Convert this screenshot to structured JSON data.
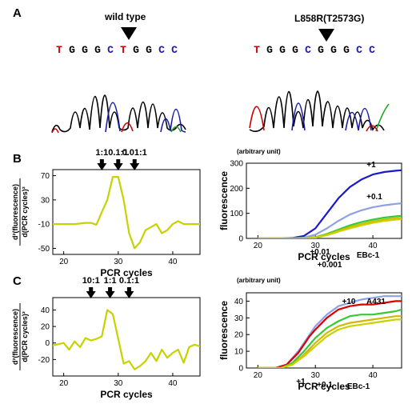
{
  "panels": {
    "a": {
      "letter": "A",
      "left": {
        "label": "wild type",
        "sequence": [
          {
            "base": "T",
            "color": "#cc0000"
          },
          {
            "base": "G",
            "color": "#000000"
          },
          {
            "base": "G",
            "color": "#000000"
          },
          {
            "base": "G",
            "color": "#000000"
          },
          {
            "base": "C",
            "color": "#1a1aa8"
          },
          {
            "base": "T",
            "color": "#cc0000"
          },
          {
            "base": "G",
            "color": "#000000"
          },
          {
            "base": "G",
            "color": "#000000"
          },
          {
            "base": "C",
            "color": "#1a1aa8"
          },
          {
            "base": "C",
            "color": "#1a1aa8"
          }
        ]
      },
      "right": {
        "label": "L858R(T2573G)",
        "sequence": [
          {
            "base": "T",
            "color": "#cc0000"
          },
          {
            "base": "G",
            "color": "#000000"
          },
          {
            "base": "G",
            "color": "#000000"
          },
          {
            "base": "G",
            "color": "#000000"
          },
          {
            "base": "C",
            "color": "#1a1aa8"
          },
          {
            "base": "G",
            "color": "#000000"
          },
          {
            "base": "G",
            "color": "#000000"
          },
          {
            "base": "G",
            "color": "#000000"
          },
          {
            "base": "C",
            "color": "#1a1aa8"
          },
          {
            "base": "C",
            "color": "#1a1aa8"
          }
        ]
      }
    },
    "b": {
      "letter": "B"
    },
    "c": {
      "letter": "C"
    }
  },
  "chart_data": [
    {
      "id": "B-left",
      "type": "line",
      "xlabel": "PCR cycles",
      "ylabel_numerator": "d²(fluorescence)",
      "ylabel_denominator": "d(PCR cycles)²",
      "xlim": [
        18,
        45
      ],
      "ylim": [
        -60,
        80
      ],
      "xticks": [
        20,
        30,
        40
      ],
      "yticks": [
        70,
        30,
        -10,
        -50
      ],
      "ytick_labels": [
        "70",
        "30",
        "-10",
        "-50"
      ],
      "arrows": [
        {
          "label": "1:1",
          "x": 27
        },
        {
          "label": "0.1:1",
          "x": 30
        },
        {
          "label": "0.01:1",
          "x": 33
        }
      ],
      "series": [
        {
          "color": "#c8d200",
          "x": [
            18,
            20,
            22,
            24,
            25,
            26,
            27,
            28,
            29,
            30,
            31,
            32,
            33,
            34,
            35,
            36,
            37,
            38,
            39,
            40,
            41,
            42,
            43,
            45
          ],
          "y": [
            -10,
            -10,
            -10,
            -8,
            -8,
            -11,
            10,
            30,
            68,
            68,
            30,
            -25,
            -50,
            -40,
            -20,
            -15,
            -10,
            -25,
            -20,
            -10,
            -5,
            -10,
            -10,
            -10
          ]
        }
      ]
    },
    {
      "id": "B-right",
      "type": "line",
      "unit_note": "(arbitrary unit)",
      "xlabel": "PCR cycles",
      "ylabel": "fluorescence",
      "xlim": [
        18,
        45
      ],
      "ylim": [
        0,
        300
      ],
      "xticks": [
        20,
        30,
        40
      ],
      "yticks": [
        0,
        100,
        200,
        300
      ],
      "series": [
        {
          "name": "+1",
          "color": "#1a1acc",
          "x": [
            20,
            24,
            26,
            28,
            30,
            32,
            34,
            36,
            38,
            40,
            42,
            44,
            45
          ],
          "y": [
            0,
            0,
            2,
            10,
            40,
            100,
            160,
            205,
            235,
            255,
            265,
            270,
            272
          ]
        },
        {
          "name": "+0.1",
          "color": "#8ea0e6",
          "x": [
            20,
            26,
            28,
            30,
            32,
            34,
            36,
            38,
            40,
            42,
            44,
            45
          ],
          "y": [
            0,
            0,
            3,
            15,
            40,
            70,
            95,
            112,
            124,
            132,
            138,
            140
          ]
        },
        {
          "name": "+0.01",
          "color": "#33cc33",
          "x": [
            20,
            28,
            30,
            32,
            34,
            36,
            38,
            40,
            42,
            44,
            45
          ],
          "y": [
            0,
            0,
            5,
            18,
            35,
            52,
            65,
            75,
            83,
            88,
            90
          ]
        },
        {
          "name": "+0.001",
          "color": "#d4b800",
          "x": [
            20,
            28,
            30,
            32,
            34,
            36,
            38,
            40,
            42,
            44,
            45
          ],
          "y": [
            0,
            0,
            4,
            15,
            30,
            45,
            57,
            67,
            75,
            80,
            82
          ]
        },
        {
          "name": "EBc-1",
          "color": "#c8d200",
          "x": [
            20,
            28,
            30,
            32,
            34,
            36,
            38,
            40,
            42,
            44,
            45
          ],
          "y": [
            0,
            0,
            3,
            13,
            27,
            40,
            52,
            62,
            70,
            75,
            77
          ]
        }
      ]
    },
    {
      "id": "C-left",
      "type": "line",
      "xlabel": "PCR cycles",
      "ylabel_numerator": "d²(fluorescence)",
      "ylabel_denominator": "d(PCR cycles)²",
      "xlim": [
        18,
        45
      ],
      "ylim": [
        -40,
        55
      ],
      "xticks": [
        20,
        30,
        40
      ],
      "yticks": [
        40,
        20,
        0,
        -20
      ],
      "ytick_labels": [
        "40",
        "20",
        "0",
        "-20"
      ],
      "arrows": [
        {
          "label": "10:1",
          "x": 25
        },
        {
          "label": "1:1",
          "x": 28.5
        },
        {
          "label": "0.1:1",
          "x": 32
        }
      ],
      "series": [
        {
          "color": "#c8d200",
          "x": [
            18,
            20,
            21,
            22,
            23,
            24,
            25,
            26,
            27,
            28,
            29,
            30,
            31,
            32,
            33,
            34,
            35,
            36,
            37,
            38,
            39,
            40,
            41,
            42,
            43,
            44,
            45
          ],
          "y": [
            -3,
            0,
            -8,
            2,
            -5,
            6,
            3,
            5,
            8,
            40,
            35,
            5,
            -25,
            -22,
            -32,
            -28,
            -22,
            -12,
            -22,
            -8,
            -18,
            -12,
            -8,
            -24,
            -5,
            -2,
            -4
          ]
        }
      ]
    },
    {
      "id": "C-right",
      "type": "line",
      "unit_note": "(arbitrary unit)",
      "xlabel": "PCR cycles",
      "ylabel": "fluorescence",
      "xlim": [
        18,
        45
      ],
      "ylim": [
        0,
        45
      ],
      "xticks": [
        20,
        30,
        40
      ],
      "yticks": [
        0,
        10,
        20,
        30,
        40
      ],
      "series": [
        {
          "name": "+10",
          "color": "#8ea0e6",
          "x": [
            20,
            23,
            25,
            27,
            28,
            29,
            30,
            32,
            34,
            36,
            38,
            40,
            42,
            44,
            45
          ],
          "y": [
            0,
            0,
            2,
            10,
            15,
            20,
            25,
            32,
            37,
            39,
            41,
            42,
            43,
            43,
            43
          ]
        },
        {
          "name": "A431",
          "color": "#dd0000",
          "x": [
            20,
            23,
            25,
            27,
            28,
            29,
            30,
            32,
            34,
            36,
            38,
            40,
            42,
            44,
            45
          ],
          "y": [
            0,
            0,
            2,
            9,
            14,
            19,
            23,
            30,
            35,
            37,
            38,
            38,
            39,
            40,
            40
          ]
        },
        {
          "name": "+1",
          "color": "#33cc33",
          "x": [
            20,
            24,
            26,
            28,
            30,
            32,
            34,
            36,
            38,
            40,
            42,
            44,
            45
          ],
          "y": [
            0,
            0,
            3,
            10,
            18,
            24,
            28,
            31,
            32,
            32,
            33,
            34,
            35
          ]
        },
        {
          "name": "+0.1",
          "color": "#d4b800",
          "x": [
            20,
            24,
            26,
            28,
            30,
            32,
            34,
            36,
            38,
            40,
            42,
            44,
            45
          ],
          "y": [
            0,
            0,
            2,
            8,
            15,
            21,
            25,
            27,
            28,
            29,
            30,
            31,
            31
          ]
        },
        {
          "name": "EBc-1",
          "color": "#c8d200",
          "x": [
            20,
            24,
            26,
            28,
            30,
            32,
            34,
            36,
            38,
            40,
            42,
            44,
            45
          ],
          "y": [
            0,
            0,
            2,
            7,
            13,
            19,
            23,
            25,
            26,
            27,
            28,
            29,
            29
          ]
        }
      ]
    }
  ]
}
